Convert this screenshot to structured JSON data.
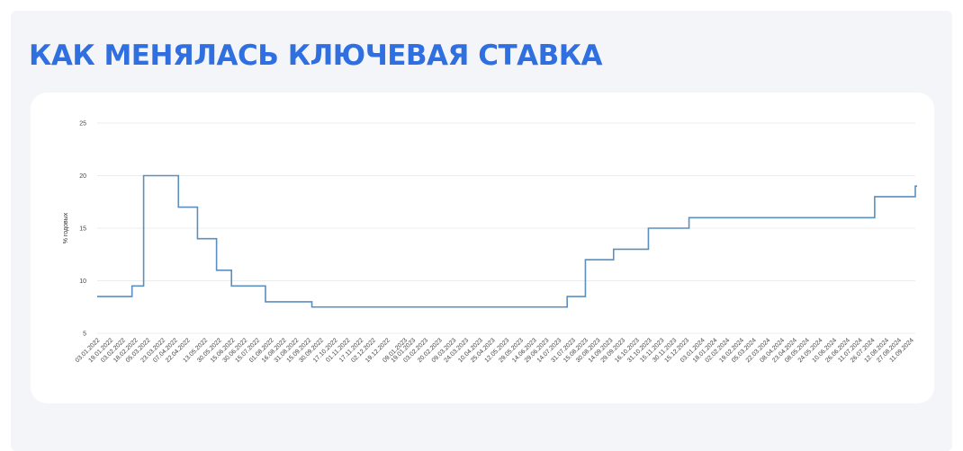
{
  "title": "КАК МЕНЯЛАСЬ КЛЮЧЕВАЯ СТАВКА",
  "chart_data": {
    "type": "line",
    "title": "",
    "xlabel": "",
    "ylabel": "% годовых",
    "ylim": [
      5,
      25
    ],
    "yticks": [
      5,
      10,
      15,
      20,
      25
    ],
    "grid": true,
    "line_color": "#5b8fbf",
    "x_tick_labels": [
      "03.01.2022",
      "19.01.2022",
      "03.02.2022",
      "18.02.2022",
      "05.03.2022",
      "23.03.2022",
      "07.04.2022",
      "22.04.2022",
      "13.05.2022",
      "30.05.2022",
      "15.06.2022",
      "30.06.2022",
      "15.07.2022",
      "01.08.2022",
      "16.08.2022",
      "31.08.2022",
      "15.09.2022",
      "30.09.2022",
      "17.10.2022",
      "01.11.2022",
      "17.11.2022",
      "02.12.2022",
      "19.12.2022",
      "09.01.2023",
      "19.01.2023",
      "03.02.2023",
      "20.02.2023",
      "09.03.2023",
      "24.03.2023",
      "10.04.2023",
      "25.04.2023",
      "12.05.2023",
      "29.05.2023",
      "14.06.2023",
      "29.06.2023",
      "14.07.2023",
      "31.07.2023",
      "15.08.2023",
      "30.08.2023",
      "14.09.2023",
      "29.09.2023",
      "16.10.2023",
      "31.10.2023",
      "15.11.2023",
      "30.11.2023",
      "15.12.2023",
      "03.01.2024",
      "18.01.2024",
      "02.02.2024",
      "19.02.2024",
      "05.03.2024",
      "22.03.2024",
      "08.04.2024",
      "23.04.2024",
      "08.05.2024",
      "24.05.2024",
      "10.06.2024",
      "26.06.2024",
      "11.07.2024",
      "26.07.2024",
      "12.08.2024",
      "27.08.2024",
      "11.09.2024"
    ],
    "series": [
      {
        "points": [
          {
            "x": "03.01.2022",
            "y": 8.5
          },
          {
            "x": "14.02.2022",
            "y": 9.5
          },
          {
            "x": "28.02.2022",
            "y": 20
          },
          {
            "x": "11.04.2022",
            "y": 17
          },
          {
            "x": "04.05.2022",
            "y": 14
          },
          {
            "x": "27.05.2022",
            "y": 11
          },
          {
            "x": "14.06.2022",
            "y": 9.5
          },
          {
            "x": "25.07.2022",
            "y": 8
          },
          {
            "x": "19.09.2022",
            "y": 7.5
          },
          {
            "x": "24.07.2023",
            "y": 8.5
          },
          {
            "x": "15.08.2023",
            "y": 12
          },
          {
            "x": "18.09.2023",
            "y": 13
          },
          {
            "x": "30.10.2023",
            "y": 15
          },
          {
            "x": "18.12.2023",
            "y": 16
          },
          {
            "x": "29.07.2024",
            "y": 18
          },
          {
            "x": "16.09.2024",
            "y": 19
          }
        ]
      }
    ]
  }
}
